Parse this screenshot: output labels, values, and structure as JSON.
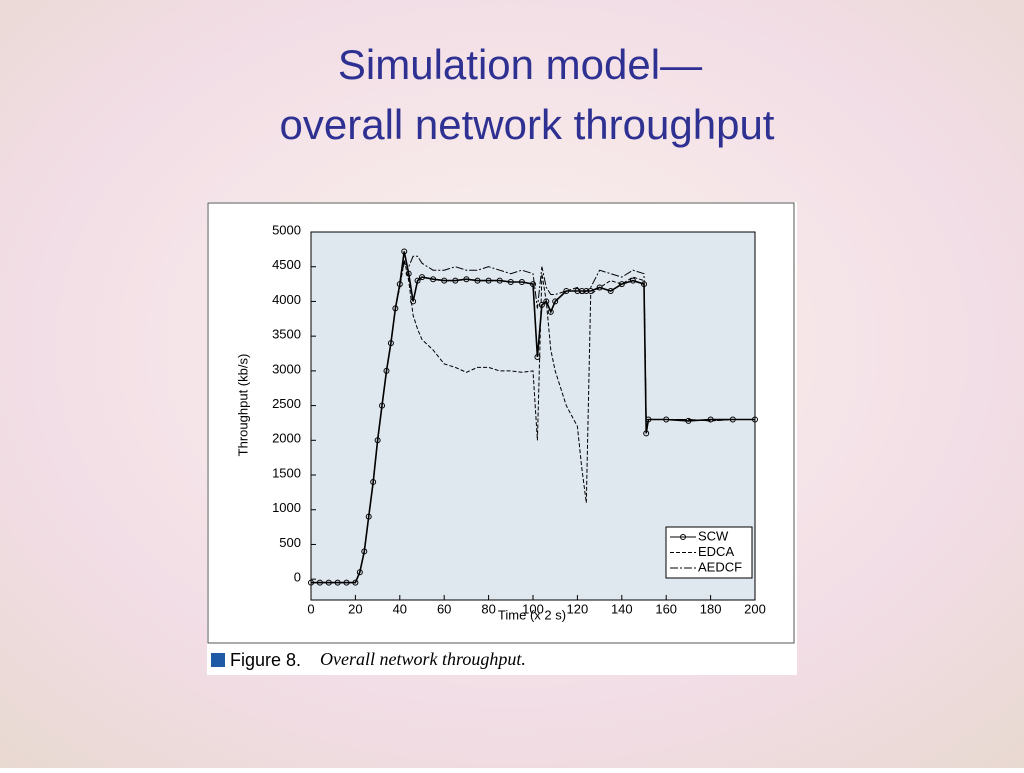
{
  "slide_title": [
    "Simulation model—",
    "overall network throughput"
  ],
  "caption_label": "Figure 8.",
  "caption_text": "Overall network throughput.",
  "chart_data": {
    "type": "line",
    "x_label": "Time (x 2 s)",
    "y_label": "Throughput (kb/s)",
    "x": [
      0,
      4,
      8,
      12,
      16,
      20,
      22,
      24,
      26,
      28,
      30,
      32,
      34,
      36,
      38,
      40,
      42,
      44,
      46,
      48,
      50,
      55,
      60,
      65,
      70,
      75,
      80,
      85,
      90,
      95,
      100,
      102,
      104,
      106,
      108,
      110,
      115,
      120,
      122,
      124,
      126,
      130,
      135,
      140,
      145,
      150,
      151,
      152,
      160,
      170,
      180,
      190,
      200
    ],
    "series": [
      {
        "name": "SCW",
        "color": "#000000",
        "line_style": "solid",
        "marker": "circle",
        "values": [
          -50,
          -50,
          -50,
          -50,
          -50,
          -50,
          100,
          400,
          900,
          1400,
          2000,
          2500,
          3000,
          3400,
          3900,
          4250,
          4720,
          4400,
          4000,
          4300,
          4350,
          4320,
          4300,
          4300,
          4320,
          4300,
          4300,
          4300,
          4280,
          4280,
          4250,
          3200,
          3950,
          4000,
          3850,
          4000,
          4150,
          4150,
          4150,
          4150,
          4150,
          4200,
          4150,
          4250,
          4300,
          4250,
          2100,
          2300,
          2300,
          2280,
          2300,
          2300,
          2300
        ]
      },
      {
        "name": "EDCA",
        "color": "#000000",
        "line_style": "dashed",
        "marker": "none",
        "values": [
          -50,
          -50,
          -50,
          -50,
          -50,
          -50,
          100,
          400,
          900,
          1400,
          2000,
          2500,
          3000,
          3400,
          3900,
          4200,
          4600,
          4300,
          3800,
          3600,
          3450,
          3300,
          3100,
          3050,
          2980,
          3050,
          3050,
          3000,
          3000,
          2980,
          3000,
          2000,
          4400,
          4000,
          3300,
          3000,
          2500,
          2200,
          1600,
          1100,
          4100,
          4200,
          4300,
          4250,
          4350,
          4300,
          2300,
          2300,
          2300,
          2300,
          2280,
          2300,
          2300
        ]
      },
      {
        "name": "AEDCF",
        "color": "#000000",
        "line_style": "dashdot",
        "marker": "none",
        "values": [
          -50,
          -50,
          -50,
          -50,
          -50,
          -50,
          100,
          400,
          900,
          1400,
          2000,
          2500,
          3000,
          3400,
          3900,
          4250,
          4550,
          4500,
          4650,
          4650,
          4550,
          4450,
          4450,
          4500,
          4450,
          4450,
          4500,
          4450,
          4400,
          4450,
          4400,
          3900,
          4500,
          4200,
          4100,
          4100,
          4150,
          4200,
          4100,
          4150,
          4200,
          4450,
          4400,
          4350,
          4450,
          4400,
          2300,
          2300,
          2300,
          2300,
          2280,
          2300,
          2300
        ]
      }
    ],
    "xlim": [
      0,
      200
    ],
    "ylim": [
      -300,
      5000
    ],
    "xticks": [
      0,
      20,
      40,
      60,
      80,
      100,
      120,
      140,
      160,
      180,
      200
    ],
    "yticks": [
      0,
      500,
      1000,
      1500,
      2000,
      2500,
      3000,
      3500,
      4000,
      4500,
      5000
    ],
    "legend": "lower right"
  }
}
